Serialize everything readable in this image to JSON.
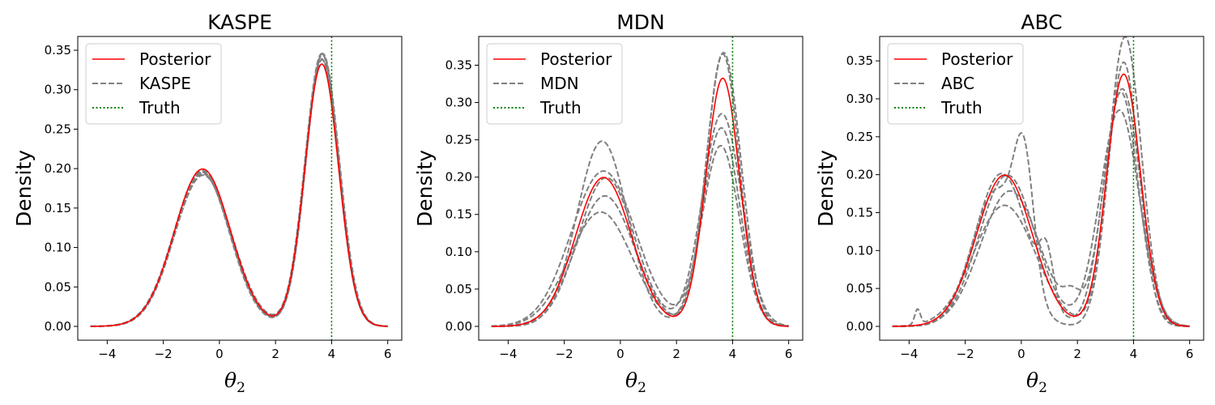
{
  "chart_data": [
    {
      "type": "line",
      "title": "KASPE",
      "xlabel": "θ",
      "xlabel_subscript": "2",
      "ylabel": "Density",
      "xlim": [
        -5.05,
        6.5
      ],
      "ylim": [
        -0.0175,
        0.3675
      ],
      "xticks": [
        -4,
        -2,
        0,
        2,
        4,
        6
      ],
      "xtick_labels": [
        "−4",
        "−2",
        "0",
        "2",
        "4",
        "6"
      ],
      "yticks": [
        0.0,
        0.05,
        0.1,
        0.15,
        0.2,
        0.25,
        0.3,
        0.35
      ],
      "ytick_labels": [
        "0.00",
        "0.05",
        "0.10",
        "0.15",
        "0.20",
        "0.25",
        "0.30",
        "0.35"
      ],
      "truth": 4,
      "legend": {
        "location": "top-left",
        "entries": [
          {
            "label": "Posterior",
            "style": "solid",
            "color": "#ff0000"
          },
          {
            "label": "KASPE",
            "style": "dashed",
            "color": "#808080"
          },
          {
            "label": "Truth",
            "style": "dotted",
            "color": "#008000"
          }
        ]
      },
      "posterior": {
        "name": "Posterior",
        "components": [
          {
            "w": 0.5,
            "mu": -0.6,
            "sd": 1.0
          },
          {
            "w": 0.5,
            "mu": 3.65,
            "sd": 0.6
          }
        ]
      },
      "series": [
        {
          "name": "KASPE 1",
          "components": [
            {
              "w": 0.49,
              "mu": -0.6,
              "sd": 1.0
            },
            {
              "w": 0.51,
              "mu": 3.67,
              "sd": 0.59
            }
          ]
        },
        {
          "name": "KASPE 2",
          "components": [
            {
              "w": 0.48,
              "mu": -0.62,
              "sd": 0.98
            },
            {
              "w": 0.52,
              "mu": 3.68,
              "sd": 0.6
            }
          ]
        },
        {
          "name": "KASPE 3",
          "components": [
            {
              "w": 0.49,
              "mu": -0.58,
              "sd": 1.02
            },
            {
              "w": 0.51,
              "mu": 3.64,
              "sd": 0.6
            }
          ]
        },
        {
          "name": "KASPE 4",
          "components": [
            {
              "w": 0.5,
              "mu": -0.61,
              "sd": 1.01
            },
            {
              "w": 0.5,
              "mu": 3.66,
              "sd": 0.59
            }
          ]
        },
        {
          "name": "KASPE 5",
          "components": [
            {
              "w": 0.48,
              "mu": -0.6,
              "sd": 0.99
            },
            {
              "w": 0.52,
              "mu": 3.65,
              "sd": 0.6
            }
          ]
        }
      ]
    },
    {
      "type": "line",
      "title": "MDN",
      "xlabel": "θ",
      "xlabel_subscript": "2",
      "ylabel": "Density",
      "xlim": [
        -5.05,
        6.5
      ],
      "ylim": [
        -0.0185,
        0.3885
      ],
      "xticks": [
        -4,
        -2,
        0,
        2,
        4,
        6
      ],
      "xtick_labels": [
        "−4",
        "−2",
        "0",
        "2",
        "4",
        "6"
      ],
      "yticks": [
        0.0,
        0.05,
        0.1,
        0.15,
        0.2,
        0.25,
        0.3,
        0.35
      ],
      "ytick_labels": [
        "0.00",
        "0.05",
        "0.10",
        "0.15",
        "0.20",
        "0.25",
        "0.30",
        "0.35"
      ],
      "truth": 4,
      "legend": {
        "location": "top-left",
        "entries": [
          {
            "label": "Posterior",
            "style": "solid",
            "color": "#ff0000"
          },
          {
            "label": "MDN",
            "style": "dashed",
            "color": "#808080"
          },
          {
            "label": "Truth",
            "style": "dotted",
            "color": "#008000"
          }
        ]
      },
      "posterior": {
        "name": "Posterior",
        "components": [
          {
            "w": 0.5,
            "mu": -0.6,
            "sd": 1.0
          },
          {
            "w": 0.5,
            "mu": 3.65,
            "sd": 0.6
          }
        ]
      },
      "series": [
        {
          "name": "MDN 1",
          "components": [
            {
              "w": 0.56,
              "mu": -0.65,
              "sd": 0.9
            },
            {
              "w": 0.44,
              "mu": 3.6,
              "sd": 0.66
            }
          ]
        },
        {
          "name": "MDN 2",
          "components": [
            {
              "w": 0.46,
              "mu": -0.55,
              "sd": 1.05
            },
            {
              "w": 0.54,
              "mu": 3.65,
              "sd": 0.59
            }
          ]
        },
        {
          "name": "MDN 3",
          "components": [
            {
              "w": 0.43,
              "mu": -0.7,
              "sd": 1.12
            },
            {
              "w": 0.57,
              "mu": 3.68,
              "sd": 0.62
            }
          ]
        },
        {
          "name": "MDN 4",
          "components": [
            {
              "w": 0.5,
              "mu": -0.5,
              "sd": 1.0
            },
            {
              "w": 0.5,
              "mu": 3.62,
              "sd": 0.7
            }
          ]
        },
        {
          "name": "MDN 5",
          "components": [
            {
              "w": 0.6,
              "mu": -0.6,
              "sd": 1.15
            },
            {
              "w": 0.4,
              "mu": 3.58,
              "sd": 0.66
            }
          ]
        }
      ]
    },
    {
      "type": "line",
      "title": "ABC",
      "xlabel": "θ",
      "xlabel_subscript": "2",
      "ylabel": "Density",
      "xlim": [
        -5.05,
        6.5
      ],
      "ylim": [
        -0.0182,
        0.3822
      ],
      "xticks": [
        -4,
        -2,
        0,
        2,
        4,
        6
      ],
      "xtick_labels": [
        "−4",
        "−2",
        "0",
        "2",
        "4",
        "6"
      ],
      "yticks": [
        0.0,
        0.05,
        0.1,
        0.15,
        0.2,
        0.25,
        0.3,
        0.35
      ],
      "ytick_labels": [
        "0.00",
        "0.05",
        "0.10",
        "0.15",
        "0.20",
        "0.25",
        "0.30",
        "0.35"
      ],
      "truth": 4,
      "legend": {
        "location": "top-left",
        "entries": [
          {
            "label": "Posterior",
            "style": "solid",
            "color": "#ff0000"
          },
          {
            "label": "ABC",
            "style": "dashed",
            "color": "#808080"
          },
          {
            "label": "Truth",
            "style": "dotted",
            "color": "#008000"
          }
        ]
      },
      "posterior": {
        "name": "Posterior",
        "components": [
          {
            "w": 0.5,
            "mu": -0.6,
            "sd": 1.0
          },
          {
            "w": 0.5,
            "mu": 3.65,
            "sd": 0.6
          }
        ]
      },
      "series": [
        {
          "name": "ABC 1",
          "components": [
            {
              "w": 0.38,
              "mu": -0.9,
              "sd": 0.85
            },
            {
              "w": 0.14,
              "mu": 0.1,
              "sd": 0.35
            },
            {
              "w": 0.48,
              "mu": 3.65,
              "sd": 0.55
            }
          ]
        },
        {
          "name": "ABC 2",
          "components": [
            {
              "w": 0.47,
              "mu": -0.4,
              "sd": 1.05
            },
            {
              "w": 0.02,
              "mu": 1.8,
              "sd": 0.3
            },
            {
              "w": 0.51,
              "mu": 3.6,
              "sd": 0.65
            }
          ]
        },
        {
          "name": "ABC 3",
          "components": [
            {
              "w": 0.48,
              "mu": -0.7,
              "sd": 0.95
            },
            {
              "w": 0.04,
              "mu": 0.9,
              "sd": 0.25
            },
            {
              "w": 0.48,
              "mu": 3.55,
              "sd": 0.62
            }
          ]
        },
        {
          "name": "ABC 4",
          "components": [
            {
              "w": 0.5,
              "mu": -0.5,
              "sd": 1.0
            },
            {
              "w": 0.5,
              "mu": 3.5,
              "sd": 0.7
            }
          ]
        },
        {
          "name": "ABC 5",
          "components": [
            {
              "w": 0.44,
              "mu": -0.6,
              "sd": 1.1
            },
            {
              "w": 0.005,
              "mu": -3.7,
              "sd": 0.1
            },
            {
              "w": 0.555,
              "mu": 3.7,
              "sd": 0.58
            }
          ]
        }
      ]
    }
  ]
}
